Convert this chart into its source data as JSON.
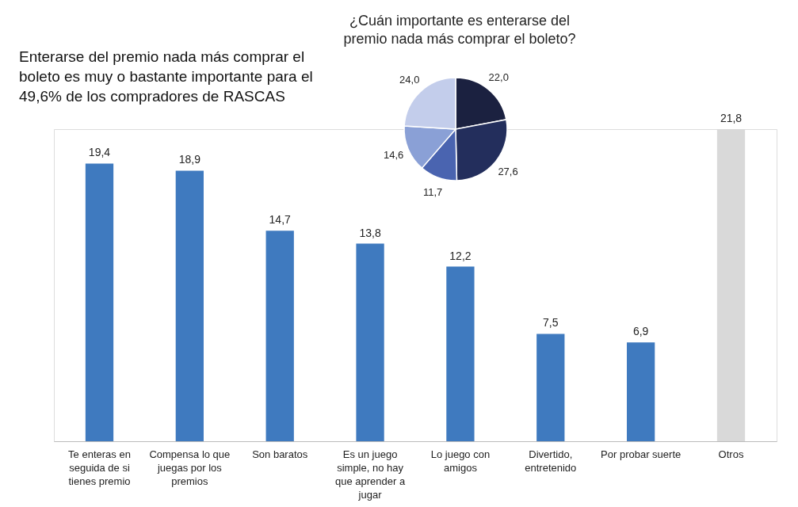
{
  "chart_data": [
    {
      "type": "bar",
      "title": "Enterarse del premio nada más comprar el boleto es muy o bastante importante para el 49,6% de los compradores de RASCAS",
      "categories": [
        "Te enteras en seguida de si tienes premio",
        "Compensa lo que juegas por los premios",
        "Son baratos",
        "Es un juego simple, no hay que aprender a jugar",
        "Lo juego con amigos",
        "Divertido, entretenido",
        "Por probar suerte",
        "Otros"
      ],
      "values": [
        19.4,
        18.9,
        14.7,
        13.8,
        12.2,
        7.5,
        6.9,
        21.8
      ],
      "colors": [
        "#3f7abf",
        "#3f7abf",
        "#3f7abf",
        "#3f7abf",
        "#3f7abf",
        "#3f7abf",
        "#3f7abf",
        "#d9d9d9"
      ],
      "value_labels": [
        "19,4",
        "18,9",
        "14,7",
        "13,8",
        "12,2",
        "7,5",
        "6,9",
        "21,8"
      ],
      "grid": false
    },
    {
      "type": "pie",
      "title": "¿Cuán importante es enterarse del premio nada más comprar el boleto?",
      "categories": [
        null,
        null,
        null,
        null,
        null
      ],
      "values": [
        22.0,
        27.6,
        11.7,
        14.6,
        24.0
      ],
      "colors": [
        "#1b2140",
        "#232e5c",
        "#4a64b0",
        "#8aa0d6",
        "#c3cdeb"
      ],
      "value_labels": [
        "22,0",
        "27,6",
        "11,7",
        "14,6",
        "24,0"
      ]
    }
  ]
}
